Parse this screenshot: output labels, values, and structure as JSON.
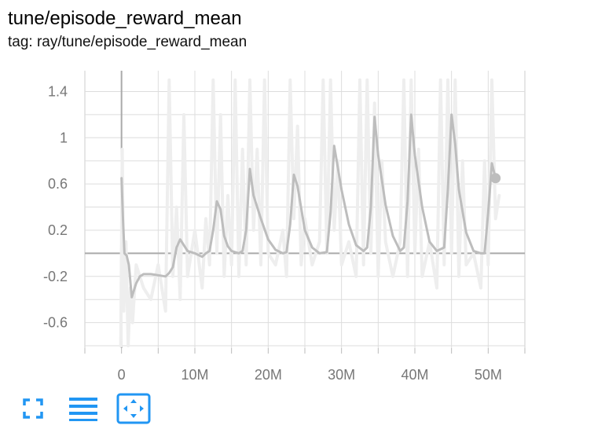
{
  "card": {
    "title": "tune/episode_reward_mean",
    "tag": "tag: ray/tune/episode_reward_mean"
  },
  "toolbar": {
    "fullscreen_icon": "fullscreen-icon",
    "log_scale_icon": "lines-menu-icon",
    "fit_domain_icon": "fit-domain-icon",
    "accent": "#2196f3"
  },
  "colors": {
    "smoothed": "#bdbdbd",
    "raw": "#eeeeee",
    "grid": "#dddddd",
    "axis": "#aaaaaa"
  },
  "chart_data": {
    "type": "line",
    "title": "tune/episode_reward_mean",
    "xlabel": "",
    "ylabel": "",
    "xlim": [
      -5,
      55
    ],
    "ylim": [
      -0.82,
      1.58
    ],
    "x_ticks": [
      0,
      10,
      20,
      30,
      40,
      50
    ],
    "x_tick_labels": [
      "0",
      "10M",
      "20M",
      "30M",
      "40M",
      "50M"
    ],
    "y_ticks": [
      1.4,
      1,
      0.6,
      0.2,
      -0.2,
      -0.6
    ],
    "y_tick_labels": [
      "1.4",
      "1",
      "0.6",
      "0.2",
      "-0.2",
      "-0.6"
    ],
    "grid": true,
    "legend": "none",
    "series": [
      {
        "role": "smoothed",
        "x": [
          0.0,
          0.2,
          0.4,
          0.7,
          1.0,
          1.4,
          2.0,
          2.5,
          3.0,
          4.0,
          5.0,
          6.0,
          6.5,
          7.0,
          7.5,
          8.0,
          8.5,
          9.0,
          10.0,
          11.0,
          11.5,
          12.0,
          12.5,
          13.0,
          13.5,
          14.0,
          14.5,
          15.0,
          16.0,
          16.5,
          17.0,
          17.5,
          18.0,
          19.0,
          20.0,
          21.0,
          22.0,
          22.5,
          23.0,
          23.5,
          24.0,
          25.0,
          26.0,
          27.0,
          28.0,
          28.5,
          29.0,
          30.0,
          31.0,
          32.0,
          33.0,
          33.5,
          34.0,
          34.5,
          35.0,
          36.0,
          37.0,
          38.0,
          38.5,
          39.0,
          39.5,
          40.0,
          41.0,
          42.0,
          43.0,
          44.0,
          44.5,
          45.0,
          45.5,
          46.0,
          47.0,
          48.0,
          49.0,
          49.5,
          50.0,
          50.5,
          51.0
        ],
        "y": [
          0.65,
          0.3,
          0.0,
          -0.02,
          -0.1,
          -0.38,
          -0.26,
          -0.2,
          -0.18,
          -0.18,
          -0.19,
          -0.2,
          -0.17,
          -0.12,
          0.05,
          0.12,
          0.07,
          0.02,
          0.0,
          -0.03,
          0.0,
          0.02,
          0.2,
          0.45,
          0.38,
          0.15,
          0.06,
          0.02,
          0.0,
          0.02,
          0.2,
          0.73,
          0.5,
          0.3,
          0.12,
          0.03,
          0.0,
          0.01,
          0.25,
          0.68,
          0.58,
          0.2,
          0.05,
          0.0,
          0.01,
          0.35,
          0.93,
          0.55,
          0.25,
          0.07,
          0.02,
          0.05,
          0.4,
          1.18,
          0.85,
          0.42,
          0.15,
          0.02,
          0.05,
          0.45,
          1.2,
          0.85,
          0.4,
          0.1,
          0.02,
          0.05,
          0.55,
          1.2,
          0.95,
          0.55,
          0.18,
          0.02,
          0.0,
          0.0,
          0.35,
          0.78,
          0.65
        ]
      },
      {
        "role": "raw",
        "x": [
          -0.1,
          0.1,
          0.3,
          0.6,
          0.9,
          1.2,
          1.5,
          2.0,
          3.0,
          4.0,
          5.0,
          5.5,
          6.0,
          6.5,
          7.0,
          7.5,
          8.0,
          8.5,
          9.0,
          10.0,
          11.0,
          11.5,
          12.0,
          12.5,
          13.0,
          13.5,
          14.0,
          14.5,
          15.0,
          15.5,
          16.0,
          16.5,
          17.0,
          17.5,
          18.0,
          18.5,
          19.0,
          19.5,
          20.0,
          21.0,
          22.0,
          22.5,
          23.0,
          23.5,
          24.0,
          24.5,
          25.0,
          26.0,
          27.0,
          27.5,
          28.0,
          28.5,
          29.0,
          29.5,
          30.0,
          31.0,
          32.0,
          32.5,
          33.0,
          33.5,
          34.0,
          34.5,
          35.0,
          35.5,
          36.0,
          37.0,
          38.0,
          38.5,
          39.0,
          39.5,
          40.0,
          40.5,
          41.0,
          42.0,
          43.0,
          43.5,
          44.0,
          44.5,
          45.0,
          45.5,
          46.0,
          46.5,
          47.0,
          48.0,
          49.0,
          49.5,
          50.0,
          50.5,
          51.0,
          51.5
        ],
        "y": [
          -0.8,
          0.9,
          -0.5,
          0.1,
          -0.8,
          -0.3,
          -0.6,
          -0.1,
          -0.3,
          -0.4,
          -0.1,
          -0.3,
          -0.5,
          1.5,
          -0.2,
          0.4,
          -0.4,
          1.2,
          -0.2,
          0.2,
          -0.3,
          0.3,
          -0.1,
          1.5,
          0.0,
          1.2,
          -0.2,
          0.5,
          -0.1,
          1.5,
          -0.2,
          0.9,
          -0.1,
          1.5,
          0.2,
          0.9,
          -0.1,
          1.5,
          0.0,
          -0.1,
          0.2,
          -0.2,
          1.5,
          0.3,
          1.1,
          -0.1,
          0.3,
          -0.1,
          0.1,
          1.5,
          0.0,
          1.5,
          0.2,
          0.8,
          -0.1,
          0.1,
          -0.2,
          1.5,
          -0.1,
          1.5,
          0.0,
          1.3,
          -0.2,
          0.8,
          0.1,
          -0.2,
          0.1,
          1.5,
          -0.2,
          1.5,
          0.0,
          0.9,
          -0.2,
          0.1,
          -0.3,
          1.5,
          -0.1,
          1.5,
          0.0,
          1.5,
          -0.2,
          0.8,
          -0.1,
          0.0,
          -0.3,
          0.8,
          -0.1,
          1.5,
          0.3,
          0.5
        ]
      }
    ],
    "last_point": {
      "x": 51.0,
      "y": 0.65
    }
  }
}
